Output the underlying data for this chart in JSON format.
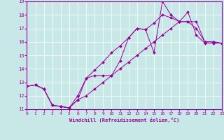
{
  "xlabel": "Windchill (Refroidissement éolien,°C)",
  "bg_color": "#c8e8e8",
  "line_color": "#990099",
  "xlim": [
    0,
    23
  ],
  "ylim": [
    11,
    19
  ],
  "xticks": [
    0,
    1,
    2,
    3,
    4,
    5,
    6,
    7,
    8,
    9,
    10,
    11,
    12,
    13,
    14,
    15,
    16,
    17,
    18,
    19,
    20,
    21,
    22,
    23
  ],
  "yticks": [
    11,
    12,
    13,
    14,
    15,
    16,
    17,
    18,
    19
  ],
  "line1_x": [
    0,
    1,
    2,
    3,
    4,
    5,
    6,
    7,
    8,
    9,
    10,
    11,
    12,
    13,
    14,
    15,
    16,
    17,
    18,
    19,
    20,
    21,
    22,
    23
  ],
  "line1_y": [
    12.7,
    12.8,
    12.5,
    11.3,
    11.2,
    11.1,
    11.7,
    13.3,
    13.5,
    13.5,
    13.5,
    14.6,
    16.3,
    17.0,
    16.9,
    15.2,
    19.0,
    18.0,
    17.5,
    18.2,
    16.5,
    15.9,
    15.9,
    15.9
  ],
  "line2_x": [
    0,
    1,
    2,
    3,
    4,
    5,
    6,
    7,
    8,
    9,
    10,
    11,
    12,
    13,
    14,
    15,
    16,
    17,
    18,
    19,
    20,
    21,
    22,
    23
  ],
  "line2_y": [
    12.7,
    12.8,
    12.5,
    11.3,
    11.2,
    11.1,
    12.0,
    13.3,
    13.9,
    14.5,
    15.2,
    15.7,
    16.3,
    17.0,
    16.9,
    17.4,
    18.0,
    17.8,
    17.5,
    17.5,
    17.0,
    16.0,
    16.0,
    15.9
  ],
  "line3_x": [
    0,
    1,
    2,
    3,
    4,
    5,
    6,
    7,
    8,
    9,
    10,
    11,
    12,
    13,
    14,
    15,
    16,
    17,
    18,
    19,
    20,
    21,
    22,
    23
  ],
  "line3_y": [
    12.7,
    12.8,
    12.5,
    11.3,
    11.2,
    11.1,
    11.7,
    12.0,
    12.5,
    13.0,
    13.5,
    14.0,
    14.5,
    15.0,
    15.5,
    16.0,
    16.5,
    17.0,
    17.5,
    17.5,
    17.5,
    16.0,
    16.0,
    15.9
  ]
}
